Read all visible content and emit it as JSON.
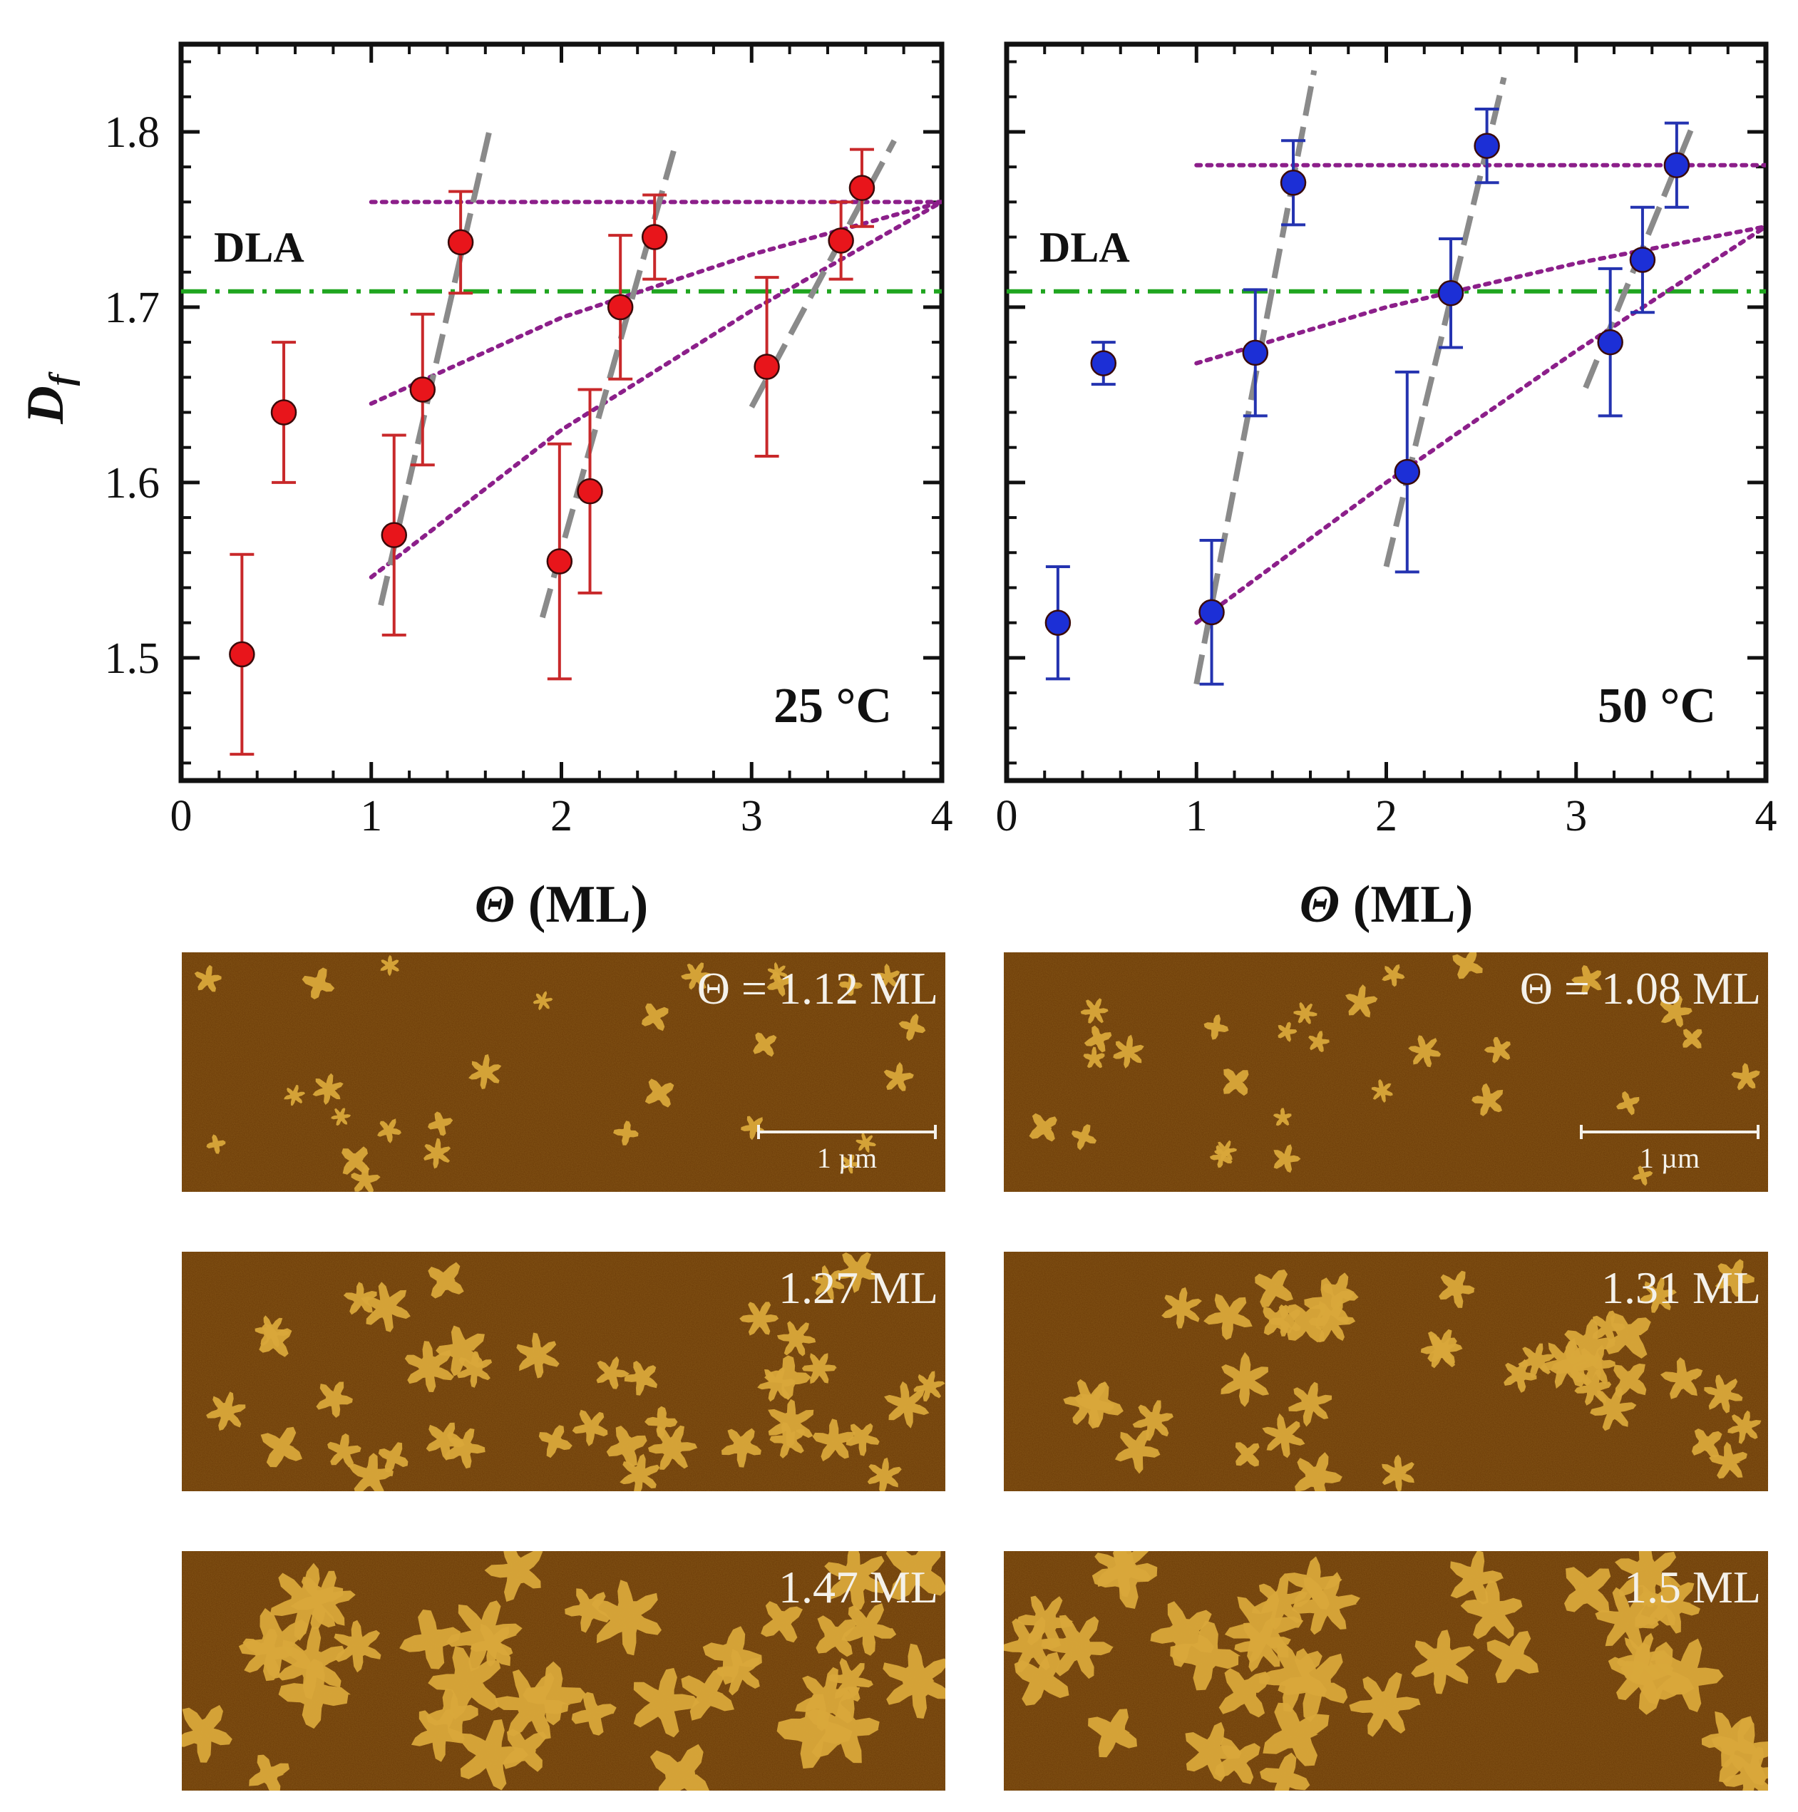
{
  "chart_data": [
    {
      "type": "scatter",
      "panel_label": "25 °C",
      "xlabel_symbol": "Θ",
      "xlabel_unit": " (ML)",
      "ylabel_symbol": "D",
      "ylabel_sub": "f",
      "xlim": [
        0,
        4
      ],
      "ylim": [
        1.43,
        1.85
      ],
      "xticks": [
        "0",
        "1",
        "2",
        "3",
        "4"
      ],
      "yticks": [
        "1.5",
        "1.6",
        "1.7",
        "1.8"
      ],
      "marker_color": "#e8151b",
      "errbar_color": "#c8282a",
      "points": [
        {
          "x": 0.32,
          "y": 1.502,
          "err": 0.057
        },
        {
          "x": 0.54,
          "y": 1.64,
          "err": 0.04
        },
        {
          "x": 1.12,
          "y": 1.57,
          "err": 0.057
        },
        {
          "x": 1.27,
          "y": 1.653,
          "err": 0.043
        },
        {
          "x": 1.47,
          "y": 1.737,
          "err": 0.029
        },
        {
          "x": 1.99,
          "y": 1.555,
          "err": 0.067
        },
        {
          "x": 2.15,
          "y": 1.595,
          "err": 0.058
        },
        {
          "x": 2.31,
          "y": 1.7,
          "err": 0.041
        },
        {
          "x": 2.49,
          "y": 1.74,
          "err": 0.024
        },
        {
          "x": 3.08,
          "y": 1.666,
          "err": 0.051
        },
        {
          "x": 3.47,
          "y": 1.738,
          "err": 0.022
        },
        {
          "x": 3.58,
          "y": 1.768,
          "err": 0.022
        }
      ],
      "dla_line": {
        "label": "DLA",
        "y": 1.709,
        "color": "#1fa51f"
      },
      "dashed_fits": [
        {
          "x": [
            1.05,
            1.62
          ],
          "y": [
            1.53,
            1.8
          ]
        },
        {
          "x": [
            1.9,
            2.6
          ],
          "y": [
            1.523,
            1.793
          ]
        },
        {
          "x": [
            3.0,
            3.75
          ],
          "y": [
            1.643,
            1.795
          ]
        }
      ],
      "dotted_fits": [
        {
          "x": [
            1.0,
            4.0
          ],
          "y": [
            1.76,
            1.76
          ]
        },
        {
          "x": [
            1.0,
            2.0,
            3.0,
            4.0
          ],
          "y": [
            1.645,
            1.694,
            1.73,
            1.76
          ]
        },
        {
          "x": [
            1.0,
            2.0,
            3.0,
            4.0
          ],
          "y": [
            1.546,
            1.63,
            1.698,
            1.76
          ]
        }
      ],
      "afm_images": [
        {
          "label": "Θ = 1.12 ML",
          "scale_bar": "1 µm"
        },
        {
          "label": "1.27 ML"
        },
        {
          "label": "1.47 ML"
        }
      ]
    },
    {
      "type": "scatter",
      "panel_label": "50 °C",
      "xlabel_symbol": "Θ",
      "xlabel_unit": " (ML)",
      "xlim": [
        0,
        4
      ],
      "ylim": [
        1.43,
        1.85
      ],
      "xticks": [
        "0",
        "1",
        "2",
        "3",
        "4"
      ],
      "marker_color": "#1c2fd6",
      "errbar_color": "#2433b0",
      "points": [
        {
          "x": 0.27,
          "y": 1.52,
          "err": 0.032
        },
        {
          "x": 0.51,
          "y": 1.668,
          "err": 0.012
        },
        {
          "x": 1.08,
          "y": 1.526,
          "err": 0.041
        },
        {
          "x": 1.31,
          "y": 1.674,
          "err": 0.036
        },
        {
          "x": 1.51,
          "y": 1.771,
          "err": 0.024
        },
        {
          "x": 2.11,
          "y": 1.606,
          "err": 0.057
        },
        {
          "x": 2.34,
          "y": 1.708,
          "err": 0.031
        },
        {
          "x": 2.53,
          "y": 1.792,
          "err": 0.021
        },
        {
          "x": 3.18,
          "y": 1.68,
          "err": 0.042
        },
        {
          "x": 3.35,
          "y": 1.727,
          "err": 0.03
        },
        {
          "x": 3.53,
          "y": 1.781,
          "err": 0.024
        }
      ],
      "dla_line": {
        "label": "DLA",
        "y": 1.709,
        "color": "#1fa51f"
      },
      "dashed_fits": [
        {
          "x": [
            1.0,
            1.62
          ],
          "y": [
            1.485,
            1.835
          ]
        },
        {
          "x": [
            2.0,
            2.62
          ],
          "y": [
            1.552,
            1.831
          ]
        },
        {
          "x": [
            3.05,
            3.62
          ],
          "y": [
            1.654,
            1.805
          ]
        }
      ],
      "dotted_fits": [
        {
          "x": [
            1.0,
            4.0
          ],
          "y": [
            1.781,
            1.781
          ]
        },
        {
          "x": [
            1.0,
            2.0,
            3.0,
            4.0
          ],
          "y": [
            1.668,
            1.7,
            1.725,
            1.746
          ]
        },
        {
          "x": [
            1.0,
            2.0,
            3.0,
            4.0
          ],
          "y": [
            1.52,
            1.6,
            1.675,
            1.746
          ]
        }
      ],
      "afm_images": [
        {
          "label": "Θ = 1.08 ML",
          "scale_bar": "1 µm"
        },
        {
          "label": "1.31 ML"
        },
        {
          "label": "1.5 ML"
        }
      ]
    }
  ],
  "colors": {
    "dashed_fit": "#8a8a8a",
    "dotted_fit": "#8c1f8a",
    "afm_background": "#6b3a07",
    "afm_island": "#d9a83a"
  }
}
